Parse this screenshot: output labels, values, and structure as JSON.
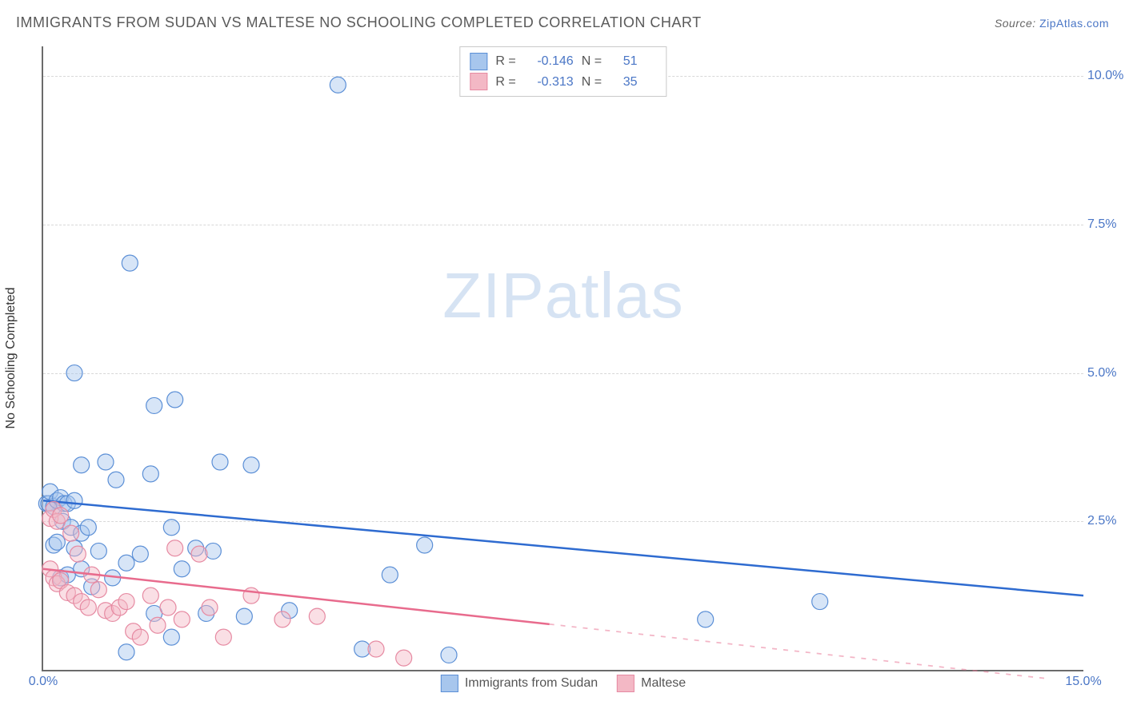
{
  "title": "IMMIGRANTS FROM SUDAN VS MALTESE NO SCHOOLING COMPLETED CORRELATION CHART",
  "source_label": "Source:",
  "source_site": "ZipAtlas.com",
  "watermark": {
    "zip": "ZIP",
    "atlas": "atlas"
  },
  "chart": {
    "type": "scatter",
    "xlim": [
      0,
      15
    ],
    "ylim": [
      0,
      10.5
    ],
    "x_ticks": [
      {
        "v": 0,
        "label": "0.0%"
      },
      {
        "v": 15,
        "label": "15.0%"
      }
    ],
    "y_lines": [
      2.5,
      5.0,
      7.5,
      10.0
    ],
    "y_ticks": [
      {
        "v": 2.5,
        "label": "2.5%"
      },
      {
        "v": 5.0,
        "label": "5.0%"
      },
      {
        "v": 7.5,
        "label": "7.5%"
      },
      {
        "v": 10.0,
        "label": "10.0%"
      }
    ],
    "y_axis_label": "No Schooling Completed",
    "background_color": "#ffffff",
    "grid_color": "#d8d8d8",
    "marker_radius": 10,
    "marker_opacity": 0.45,
    "line_width": 2.5,
    "series": [
      {
        "id": "sudan",
        "name": "Immigrants from Sudan",
        "color_fill": "#a7c6ed",
        "color_stroke": "#5b8fd6",
        "line_color": "#2e6bd0",
        "R": "-0.146",
        "N": "51",
        "trend": {
          "x1": 0,
          "y1": 2.85,
          "x2": 15,
          "y2": 1.25,
          "solid_until_x": 15
        },
        "points": [
          [
            0.05,
            2.8
          ],
          [
            0.08,
            2.8
          ],
          [
            0.1,
            3.0
          ],
          [
            0.15,
            2.75
          ],
          [
            0.2,
            2.85
          ],
          [
            0.25,
            2.9
          ],
          [
            0.3,
            2.8
          ],
          [
            0.35,
            2.8
          ],
          [
            0.45,
            2.85
          ],
          [
            0.15,
            2.1
          ],
          [
            0.2,
            2.15
          ],
          [
            0.28,
            2.5
          ],
          [
            0.4,
            2.4
          ],
          [
            0.45,
            2.05
          ],
          [
            0.55,
            2.3
          ],
          [
            0.65,
            2.4
          ],
          [
            0.8,
            2.0
          ],
          [
            0.25,
            1.55
          ],
          [
            0.35,
            1.6
          ],
          [
            0.55,
            1.7
          ],
          [
            0.7,
            1.4
          ],
          [
            1.0,
            1.55
          ],
          [
            1.2,
            1.8
          ],
          [
            1.4,
            1.95
          ],
          [
            1.6,
            0.95
          ],
          [
            1.85,
            2.4
          ],
          [
            2.0,
            1.7
          ],
          [
            2.2,
            2.05
          ],
          [
            2.35,
            0.95
          ],
          [
            2.45,
            2.0
          ],
          [
            2.55,
            3.5
          ],
          [
            2.9,
            0.9
          ],
          [
            3.0,
            3.45
          ],
          [
            3.55,
            1.0
          ],
          [
            4.6,
            0.35
          ],
          [
            5.0,
            1.6
          ],
          [
            5.5,
            2.1
          ],
          [
            5.85,
            0.25
          ],
          [
            0.55,
            3.45
          ],
          [
            0.9,
            3.5
          ],
          [
            1.05,
            3.2
          ],
          [
            1.55,
            3.3
          ],
          [
            1.6,
            4.45
          ],
          [
            1.9,
            4.55
          ],
          [
            1.25,
            6.85
          ],
          [
            0.45,
            5.0
          ],
          [
            4.25,
            9.85
          ],
          [
            1.2,
            0.3
          ],
          [
            1.85,
            0.55
          ],
          [
            9.55,
            0.85
          ],
          [
            11.2,
            1.15
          ]
        ]
      },
      {
        "id": "maltese",
        "name": "Maltese",
        "color_fill": "#f3b8c5",
        "color_stroke": "#e68aa2",
        "line_color": "#e86b8d",
        "R": "-0.313",
        "N": "35",
        "trend": {
          "x1": 0,
          "y1": 1.7,
          "x2": 14.5,
          "y2": -0.15,
          "solid_until_x": 7.3
        },
        "points": [
          [
            0.1,
            2.55
          ],
          [
            0.15,
            2.7
          ],
          [
            0.2,
            2.5
          ],
          [
            0.25,
            2.6
          ],
          [
            0.4,
            2.3
          ],
          [
            0.5,
            1.95
          ],
          [
            0.1,
            1.7
          ],
          [
            0.15,
            1.55
          ],
          [
            0.2,
            1.45
          ],
          [
            0.25,
            1.5
          ],
          [
            0.35,
            1.3
          ],
          [
            0.45,
            1.25
          ],
          [
            0.55,
            1.15
          ],
          [
            0.65,
            1.05
          ],
          [
            0.7,
            1.6
          ],
          [
            0.8,
            1.35
          ],
          [
            0.9,
            1.0
          ],
          [
            1.0,
            0.95
          ],
          [
            1.1,
            1.05
          ],
          [
            1.2,
            1.15
          ],
          [
            1.3,
            0.65
          ],
          [
            1.4,
            0.55
          ],
          [
            1.55,
            1.25
          ],
          [
            1.65,
            0.75
          ],
          [
            1.8,
            1.05
          ],
          [
            1.9,
            2.05
          ],
          [
            2.0,
            0.85
          ],
          [
            2.25,
            1.95
          ],
          [
            2.4,
            1.05
          ],
          [
            2.6,
            0.55
          ],
          [
            3.0,
            1.25
          ],
          [
            3.45,
            0.85
          ],
          [
            3.95,
            0.9
          ],
          [
            4.8,
            0.35
          ],
          [
            5.2,
            0.2
          ]
        ]
      }
    ]
  },
  "legend_top": {
    "R_label": "R =",
    "N_label": "N ="
  }
}
